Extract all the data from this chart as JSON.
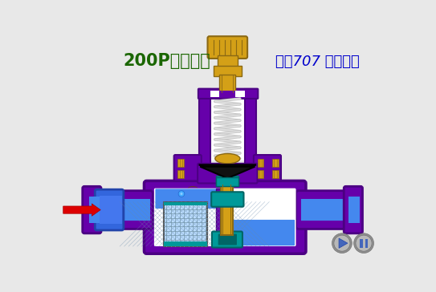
{
  "bg_color": "#e8e8e8",
  "title_left": "200P型减压阁",
  "title_right": "化巧707 剪辑制作",
  "title_left_color": "#1a6600",
  "title_right_color": "#0000cc",
  "purple": "#6600aa",
  "purple_dark": "#4B0082",
  "gold": "#D4A017",
  "gold_dark": "#8B6914",
  "teal": "#009999",
  "teal_dark": "#006666",
  "light_blue": "#5599FF",
  "blue_fluid": "#4488EE",
  "white": "#FFFFFF",
  "gray_spring": "#C8C8C8",
  "arrow_color": "#DD0000",
  "btn_gray": "#909090",
  "btn_light": "#B8B8B8",
  "btn_blue": "#4466BB"
}
